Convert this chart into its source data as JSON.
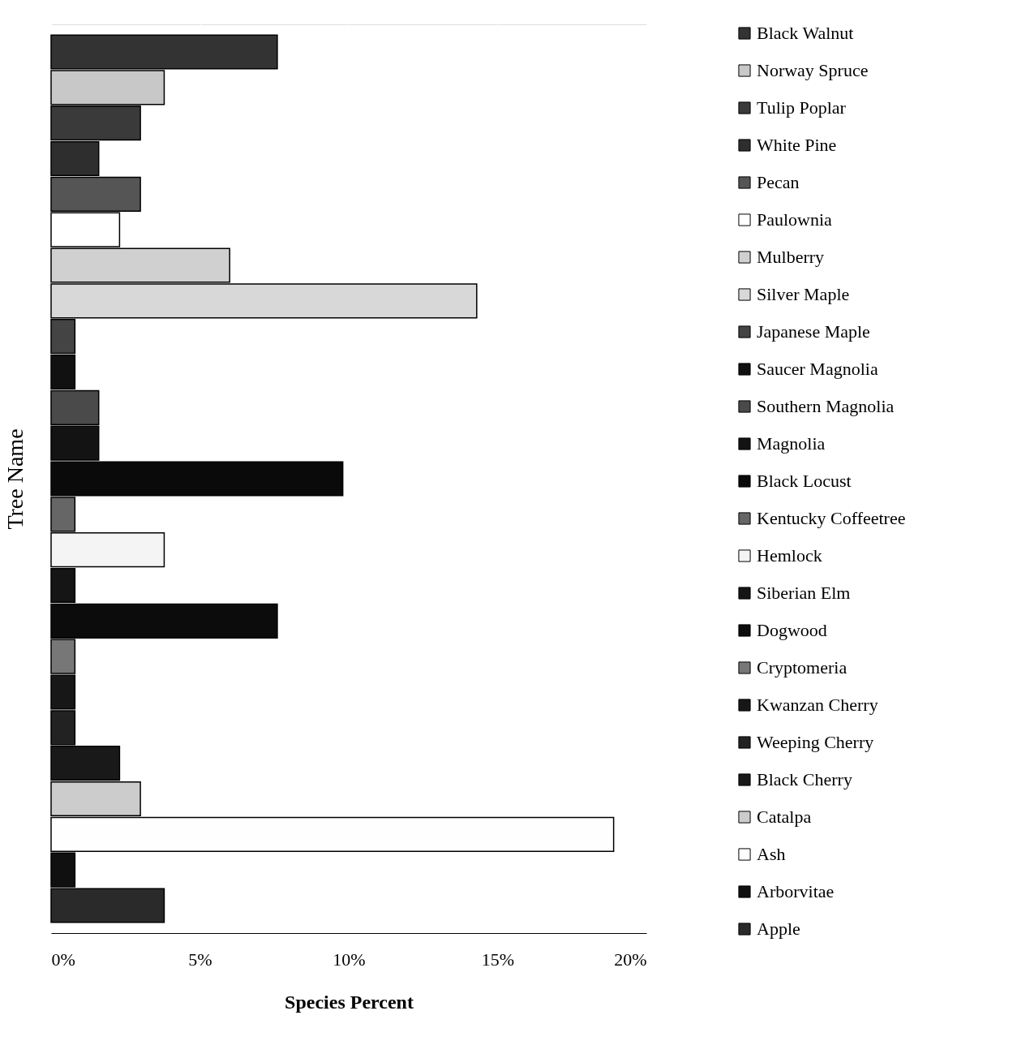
{
  "chart_data": {
    "type": "bar",
    "orientation": "horizontal",
    "xlabel": "Species Percent",
    "ylabel": "Tree Name",
    "categories": [
      null,
      null,
      null,
      null,
      null,
      null,
      null,
      null,
      null,
      null,
      null,
      null,
      null,
      null,
      null,
      null,
      null,
      null,
      null,
      null,
      null,
      null,
      null,
      null,
      null
    ],
    "series": [
      {
        "name": "Black Walnut",
        "color": "#333333",
        "values": [
          7.6,
          null,
          null,
          null,
          null,
          null,
          null,
          null,
          null,
          null,
          null,
          null,
          null,
          null,
          null,
          null,
          null,
          null,
          null,
          null,
          null,
          null,
          null,
          null,
          null
        ]
      },
      {
        "name": "Norway Spruce",
        "color": "#c8c8c8",
        "values": [
          null,
          3.8,
          null,
          null,
          null,
          null,
          null,
          null,
          null,
          null,
          null,
          null,
          null,
          null,
          null,
          null,
          null,
          null,
          null,
          null,
          null,
          null,
          null,
          null,
          null
        ]
      },
      {
        "name": "Tulip Poplar",
        "color": "#3a3a3a",
        "values": [
          null,
          null,
          3.0,
          null,
          null,
          null,
          null,
          null,
          null,
          null,
          null,
          null,
          null,
          null,
          null,
          null,
          null,
          null,
          null,
          null,
          null,
          null,
          null,
          null,
          null
        ]
      },
      {
        "name": "White Pine",
        "color": "#2e2e2e",
        "values": [
          null,
          null,
          null,
          1.6,
          null,
          null,
          null,
          null,
          null,
          null,
          null,
          null,
          null,
          null,
          null,
          null,
          null,
          null,
          null,
          null,
          null,
          null,
          null,
          null,
          null
        ]
      },
      {
        "name": "Pecan",
        "color": "#555555",
        "values": [
          null,
          null,
          null,
          null,
          3.0,
          null,
          null,
          null,
          null,
          null,
          null,
          null,
          null,
          null,
          null,
          null,
          null,
          null,
          null,
          null,
          null,
          null,
          null,
          null,
          null
        ]
      },
      {
        "name": "Paulownia",
        "color": "#ffffff",
        "values": [
          null,
          null,
          null,
          null,
          null,
          2.3,
          null,
          null,
          null,
          null,
          null,
          null,
          null,
          null,
          null,
          null,
          null,
          null,
          null,
          null,
          null,
          null,
          null,
          null,
          null
        ]
      },
      {
        "name": "Mulberry",
        "color": "#d0d0d0",
        "values": [
          null,
          null,
          null,
          null,
          null,
          null,
          6.0,
          null,
          null,
          null,
          null,
          null,
          null,
          null,
          null,
          null,
          null,
          null,
          null,
          null,
          null,
          null,
          null,
          null,
          null
        ]
      },
      {
        "name": "Silver Maple",
        "color": "#d8d8d8",
        "values": [
          null,
          null,
          null,
          null,
          null,
          null,
          null,
          14.3,
          null,
          null,
          null,
          null,
          null,
          null,
          null,
          null,
          null,
          null,
          null,
          null,
          null,
          null,
          null,
          null,
          null
        ]
      },
      {
        "name": "Japanese Maple",
        "color": "#444444",
        "values": [
          null,
          null,
          null,
          null,
          null,
          null,
          null,
          null,
          0.8,
          null,
          null,
          null,
          null,
          null,
          null,
          null,
          null,
          null,
          null,
          null,
          null,
          null,
          null,
          null,
          null
        ]
      },
      {
        "name": "Saucer Magnolia",
        "color": "#111111",
        "values": [
          null,
          null,
          null,
          null,
          null,
          null,
          null,
          null,
          null,
          0.8,
          null,
          null,
          null,
          null,
          null,
          null,
          null,
          null,
          null,
          null,
          null,
          null,
          null,
          null,
          null
        ]
      },
      {
        "name": "Southern Magnolia",
        "color": "#4a4a4a",
        "values": [
          null,
          null,
          null,
          null,
          null,
          null,
          null,
          null,
          null,
          null,
          1.6,
          null,
          null,
          null,
          null,
          null,
          null,
          null,
          null,
          null,
          null,
          null,
          null,
          null,
          null
        ]
      },
      {
        "name": "Magnolia",
        "color": "#131313",
        "values": [
          null,
          null,
          null,
          null,
          null,
          null,
          null,
          null,
          null,
          null,
          null,
          1.6,
          null,
          null,
          null,
          null,
          null,
          null,
          null,
          null,
          null,
          null,
          null,
          null,
          null
        ]
      },
      {
        "name": "Black Locust",
        "color": "#0a0a0a",
        "values": [
          null,
          null,
          null,
          null,
          null,
          null,
          null,
          null,
          null,
          null,
          null,
          null,
          9.8,
          null,
          null,
          null,
          null,
          null,
          null,
          null,
          null,
          null,
          null,
          null,
          null
        ]
      },
      {
        "name": "Kentucky Coffeetree",
        "color": "#666666",
        "values": [
          null,
          null,
          null,
          null,
          null,
          null,
          null,
          null,
          null,
          null,
          null,
          null,
          null,
          0.8,
          null,
          null,
          null,
          null,
          null,
          null,
          null,
          null,
          null,
          null,
          null
        ]
      },
      {
        "name": "Hemlock",
        "color": "#f4f4f4",
        "values": [
          null,
          null,
          null,
          null,
          null,
          null,
          null,
          null,
          null,
          null,
          null,
          null,
          null,
          null,
          3.8,
          null,
          null,
          null,
          null,
          null,
          null,
          null,
          null,
          null,
          null
        ]
      },
      {
        "name": "Siberian Elm",
        "color": "#151515",
        "values": [
          null,
          null,
          null,
          null,
          null,
          null,
          null,
          null,
          null,
          null,
          null,
          null,
          null,
          null,
          null,
          0.8,
          null,
          null,
          null,
          null,
          null,
          null,
          null,
          null,
          null
        ]
      },
      {
        "name": "Dogwood",
        "color": "#0c0c0c",
        "values": [
          null,
          null,
          null,
          null,
          null,
          null,
          null,
          null,
          null,
          null,
          null,
          null,
          null,
          null,
          null,
          null,
          7.6,
          null,
          null,
          null,
          null,
          null,
          null,
          null,
          null
        ]
      },
      {
        "name": "Cryptomeria",
        "color": "#777777",
        "values": [
          null,
          null,
          null,
          null,
          null,
          null,
          null,
          null,
          null,
          null,
          null,
          null,
          null,
          null,
          null,
          null,
          null,
          0.8,
          null,
          null,
          null,
          null,
          null,
          null,
          null
        ]
      },
      {
        "name": "Kwanzan Cherry",
        "color": "#171717",
        "values": [
          null,
          null,
          null,
          null,
          null,
          null,
          null,
          null,
          null,
          null,
          null,
          null,
          null,
          null,
          null,
          null,
          null,
          null,
          0.8,
          null,
          null,
          null,
          null,
          null,
          null
        ]
      },
      {
        "name": "Weeping Cherry",
        "color": "#222222",
        "values": [
          null,
          null,
          null,
          null,
          null,
          null,
          null,
          null,
          null,
          null,
          null,
          null,
          null,
          null,
          null,
          null,
          null,
          null,
          null,
          0.8,
          null,
          null,
          null,
          null,
          null
        ]
      },
      {
        "name": "Black Cherry",
        "color": "#191919",
        "values": [
          null,
          null,
          null,
          null,
          null,
          null,
          null,
          null,
          null,
          null,
          null,
          null,
          null,
          null,
          null,
          null,
          null,
          null,
          null,
          null,
          2.3,
          null,
          null,
          null,
          null
        ]
      },
      {
        "name": "Catalpa",
        "color": "#cccccc",
        "values": [
          null,
          null,
          null,
          null,
          null,
          null,
          null,
          null,
          null,
          null,
          null,
          null,
          null,
          null,
          null,
          null,
          null,
          null,
          null,
          null,
          null,
          3.0,
          null,
          null,
          null
        ]
      },
      {
        "name": "Ash",
        "color": "#fefefe",
        "values": [
          null,
          null,
          null,
          null,
          null,
          null,
          null,
          null,
          null,
          null,
          null,
          null,
          null,
          null,
          null,
          null,
          null,
          null,
          null,
          null,
          null,
          null,
          18.9,
          null,
          null
        ]
      },
      {
        "name": "Arborvitae",
        "color": "#101010",
        "values": [
          null,
          null,
          null,
          null,
          null,
          null,
          null,
          null,
          null,
          null,
          null,
          null,
          null,
          null,
          null,
          null,
          null,
          null,
          null,
          null,
          null,
          null,
          null,
          0.8,
          null
        ]
      },
      {
        "name": "Apple",
        "color": "#2a2a2a",
        "values": [
          null,
          null,
          null,
          null,
          null,
          null,
          null,
          null,
          null,
          null,
          null,
          null,
          null,
          null,
          null,
          null,
          null,
          null,
          null,
          null,
          null,
          null,
          null,
          null,
          3.8
        ]
      }
    ],
    "xlim": [
      0,
      20
    ],
    "xticks": [
      {
        "value": 0,
        "label": "0%"
      },
      {
        "value": 5,
        "label": "5%"
      },
      {
        "value": 10,
        "label": "10%"
      },
      {
        "value": 15,
        "label": "15%"
      },
      {
        "value": 20,
        "label": "20%"
      }
    ],
    "grid": "x",
    "legend": "right",
    "tick_labels": "x"
  }
}
